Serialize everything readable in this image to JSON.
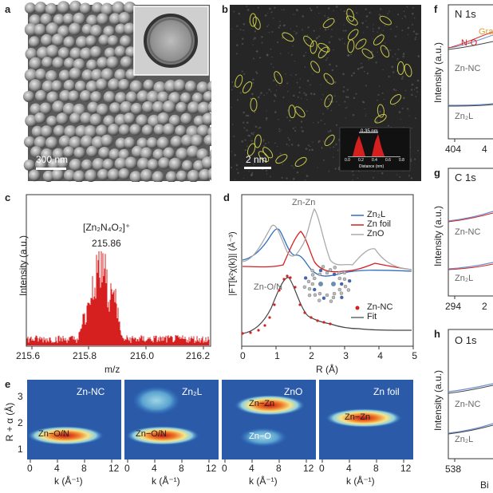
{
  "panels": {
    "a": {
      "label": "a",
      "scale_bar": "300 nm"
    },
    "b": {
      "label": "b",
      "scale_bar": "2 nm",
      "inset": {
        "measure": "0.35 nm",
        "xlabel": "Distance (nm)",
        "ticks": [
          "0.0",
          "0.2",
          "0.4",
          "0.6",
          "0.8"
        ]
      }
    },
    "c": {
      "label": "c",
      "ylabel": "Intensity (a.u.)",
      "xlabel": "m/z",
      "formula": "[Zn₂N₄O₂]⁺",
      "peak": "215.86",
      "ticks": [
        "215.6",
        "215.8",
        "216.0",
        "216.2"
      ]
    },
    "d": {
      "label": "d",
      "ylabel": "|FT[k²χ(k)]| (Å⁻³)",
      "xlabel": "R (Å)",
      "ticks": [
        "0",
        "1",
        "2",
        "3",
        "4",
        "5"
      ],
      "annotations": [
        "Zn-Zn",
        "Zn-O/N"
      ],
      "legend_top": [
        "Zn₂L",
        "Zn foil",
        "ZnO"
      ],
      "legend_bottom": [
        "Zn-NC",
        "Fit"
      ]
    },
    "e": {
      "label": "e",
      "ylabel": "R + α (Å)",
      "xlabel": "k (Å⁻¹)",
      "yticks": [
        "1",
        "2",
        "3"
      ],
      "xticks": [
        "0",
        "4",
        "8",
        "12"
      ],
      "maps": [
        {
          "title": "Zn-NC",
          "feature": "Zn−O/N"
        },
        {
          "title": "Zn₂L",
          "feature": "Zn−O/N"
        },
        {
          "title": "ZnO",
          "feature": "Zn−Zn",
          "feature2": "Zn−O"
        },
        {
          "title": "Zn foil",
          "feature": "Zn−Zn"
        }
      ]
    },
    "f": {
      "label": "f",
      "title": "N 1s",
      "ylabel": "Intensity (a.u.)",
      "labels": [
        "Grap",
        "N-O",
        "Zn-NC",
        "Zn₂L"
      ],
      "ticks": [
        "404",
        "4"
      ]
    },
    "g": {
      "label": "g",
      "title": "C 1s",
      "ylabel": "Intensity (a.u.)",
      "labels": [
        "Zn-NC",
        "Zn₂L"
      ],
      "ticks": [
        "294",
        "2"
      ]
    },
    "h": {
      "label": "h",
      "title": "O 1s",
      "ylabel": "Intensity (a.u.)",
      "labels": [
        "Zn-NC",
        "Zn₂L"
      ],
      "ticks": [
        "538"
      ],
      "xlabel_partial": "Bi"
    }
  },
  "colors": {
    "red": "#d62020",
    "blue": "#2f6ec0",
    "gray": "#888888",
    "orange": "#e69a2e"
  }
}
